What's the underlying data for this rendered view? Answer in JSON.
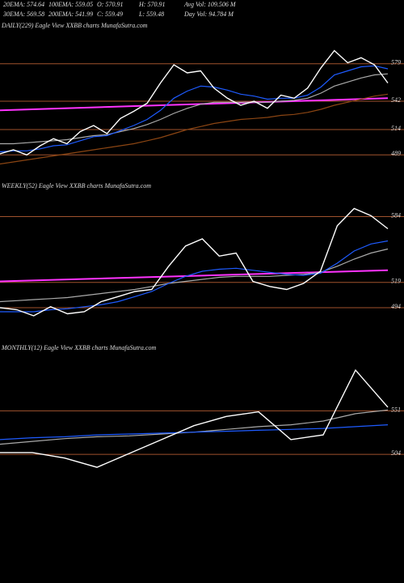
{
  "header": {
    "row1": [
      "20EMA: 574.64",
      "100EMA: 559.05",
      "O: 570.91",
      "H: 570.91",
      "Avg Vol: 109.506 M"
    ],
    "row2": [
      "30EMA: 569.58",
      "200EMA: 541.99",
      "C: 559.49",
      "L: 559.48",
      "Day Vol: 94.784 M"
    ]
  },
  "chart_data": [
    {
      "type": "line",
      "title": "DAILY(229) Eagle  View  XXBB charts MunafaSutra.com",
      "categories": [
        null,
        null,
        null,
        null,
        null,
        null,
        null,
        null,
        null,
        null,
        null,
        null,
        null,
        null,
        null,
        null,
        null,
        null,
        null,
        null,
        null,
        null,
        null,
        null,
        null,
        null,
        null,
        null,
        null,
        null
      ],
      "series": [
        {
          "color": "#8b4513",
          "values": [
            480,
            482,
            484,
            486,
            488,
            490,
            492,
            494,
            496,
            498,
            500,
            503,
            506,
            510,
            514,
            517,
            520,
            522,
            524,
            525,
            526,
            528,
            529,
            531,
            534,
            538,
            541,
            544,
            547,
            549
          ]
        },
        {
          "color": "#aaaaaa",
          "values": [
            500,
            500,
            501,
            502,
            503,
            504,
            506,
            508,
            509,
            512,
            515,
            519,
            524,
            530,
            535,
            539,
            541,
            541,
            541,
            541,
            541,
            542,
            543,
            545,
            550,
            557,
            561,
            565,
            568,
            569
          ]
        },
        {
          "color": "#1e5bff",
          "values": [
            492,
            493,
            493,
            495,
            498,
            499,
            503,
            507,
            508,
            513,
            518,
            524,
            533,
            545,
            552,
            557,
            556,
            553,
            549,
            547,
            544,
            545,
            545,
            548,
            556,
            568,
            572,
            576,
            577,
            574
          ]
        },
        {
          "color": "#ffffff",
          "values": [
            490,
            494,
            489,
            498,
            505,
            500,
            512,
            518,
            510,
            525,
            532,
            540,
            560,
            578,
            570,
            572,
            555,
            545,
            538,
            542,
            535,
            548,
            545,
            555,
            575,
            592,
            580,
            585,
            578,
            560
          ]
        }
      ],
      "trend": {
        "color": "#ff33ff",
        "values": [
          533,
          545
        ]
      },
      "ylim": [
        470,
        610
      ],
      "yticks": [
        579,
        542,
        514,
        489
      ]
    },
    {
      "type": "line",
      "title": "WEEKLY(52) Eagle  View  XXBB charts MunafaSutra.com",
      "categories": [
        null,
        null,
        null,
        null,
        null,
        null,
        null,
        null,
        null,
        null,
        null,
        null,
        null,
        null,
        null,
        null,
        null,
        null,
        null,
        null,
        null,
        null,
        null,
        null
      ],
      "series": [
        {
          "color": "#aaaaaa",
          "values": [
            500,
            501,
            502,
            503,
            504,
            506,
            508,
            510,
            512,
            515,
            518,
            520,
            522,
            524,
            525,
            525,
            525,
            526,
            527,
            529,
            535,
            542,
            548,
            552
          ]
        },
        {
          "color": "#1e5bff",
          "values": [
            490,
            490,
            490,
            492,
            493,
            495,
            497,
            500,
            505,
            510,
            518,
            525,
            530,
            532,
            533,
            531,
            529,
            527,
            526,
            528,
            538,
            550,
            557,
            560
          ]
        },
        {
          "color": "#ffffff",
          "values": [
            494,
            492,
            486,
            495,
            488,
            490,
            500,
            505,
            510,
            512,
            535,
            555,
            562,
            545,
            548,
            520,
            515,
            512,
            518,
            530,
            575,
            592,
            585,
            572
          ]
        }
      ],
      "trend": {
        "color": "#ff33ff",
        "values": [
          520,
          531
        ]
      },
      "ylim": [
        470,
        610
      ],
      "yticks": [
        584,
        519,
        494
      ]
    },
    {
      "type": "line",
      "title": "MONTHLY(12) Eagle  View  XXBB charts MunafaSutra.com",
      "categories": [
        null,
        null,
        null,
        null,
        null,
        null,
        null,
        null,
        null,
        null,
        null,
        null,
        null
      ],
      "series": [
        {
          "color": "#aaaaaa",
          "values": [
            515,
            518,
            521,
            523,
            524,
            526,
            528,
            531,
            534,
            536,
            540,
            548,
            552
          ]
        },
        {
          "color": "#1e5bff",
          "values": [
            520,
            522,
            523,
            525,
            526,
            527,
            528,
            529,
            530,
            531,
            532,
            534,
            536
          ]
        },
        {
          "color": "#ffffff",
          "values": [
            506,
            506,
            500,
            490,
            505,
            520,
            535,
            545,
            550,
            520,
            525,
            595,
            555
          ]
        }
      ],
      "ylim": [
        470,
        610
      ],
      "yticks": [
        551,
        504
      ]
    }
  ]
}
